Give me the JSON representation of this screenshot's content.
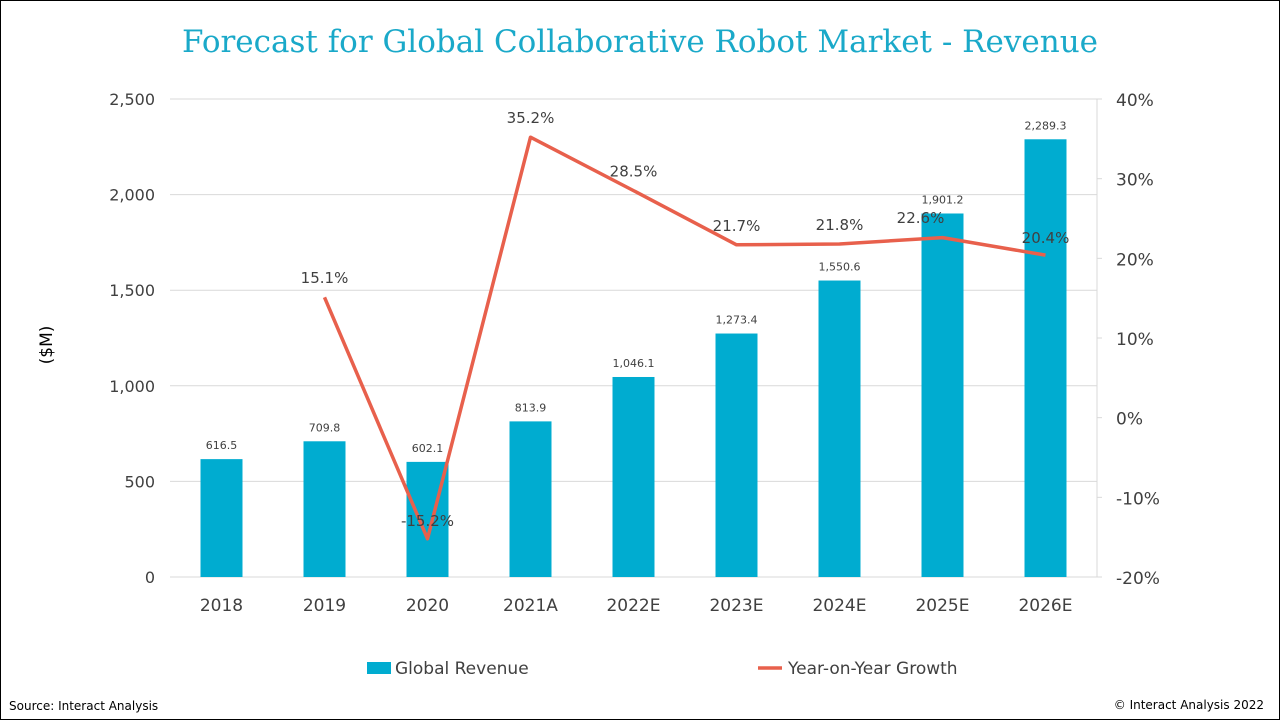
{
  "chart_data": {
    "type": "bar",
    "title": "Forecast for Global Collaborative Robot Market - Revenue",
    "categories": [
      "2018",
      "2019",
      "2020",
      "2021A",
      "2022E",
      "2023E",
      "2024E",
      "2025E",
      "2026E"
    ],
    "ylabel": "($M)",
    "ylim": [
      0,
      2500
    ],
    "yticks": [
      "0",
      "500",
      "1,000",
      "1,500",
      "2,000",
      "2,500"
    ],
    "y2lim": [
      -20,
      40
    ],
    "y2ticks": [
      "-20%",
      "-10%",
      "0%",
      "10%",
      "20%",
      "30%",
      "40%"
    ],
    "grid": true,
    "legend_position": "bottom",
    "series": [
      {
        "name": "Global Revenue",
        "type": "bar",
        "color": "#00acd0",
        "values": [
          616.5,
          709.8,
          602.1,
          813.9,
          1046.1,
          1273.4,
          1550.6,
          1901.2,
          2289.3
        ],
        "labels": [
          "616.5",
          "709.8",
          "602.1",
          "813.9",
          "1,046.1",
          "1,273.4",
          "1,550.6",
          "1,901.2",
          "2,289.3"
        ]
      },
      {
        "name": "Year-on-Year Growth",
        "type": "line",
        "axis": "right",
        "color": "#e8604c",
        "values": [
          null,
          15.1,
          -15.2,
          35.2,
          28.5,
          21.7,
          21.8,
          22.6,
          20.4
        ],
        "labels": [
          "",
          "15.1%",
          "-15.2%",
          "35.2%",
          "28.5%",
          "21.7%",
          "21.8%",
          "22.6%",
          "20.4%"
        ]
      }
    ]
  },
  "footer": {
    "source": "Source: Interact Analysis",
    "copyright": "© Interact Analysis 2022"
  }
}
